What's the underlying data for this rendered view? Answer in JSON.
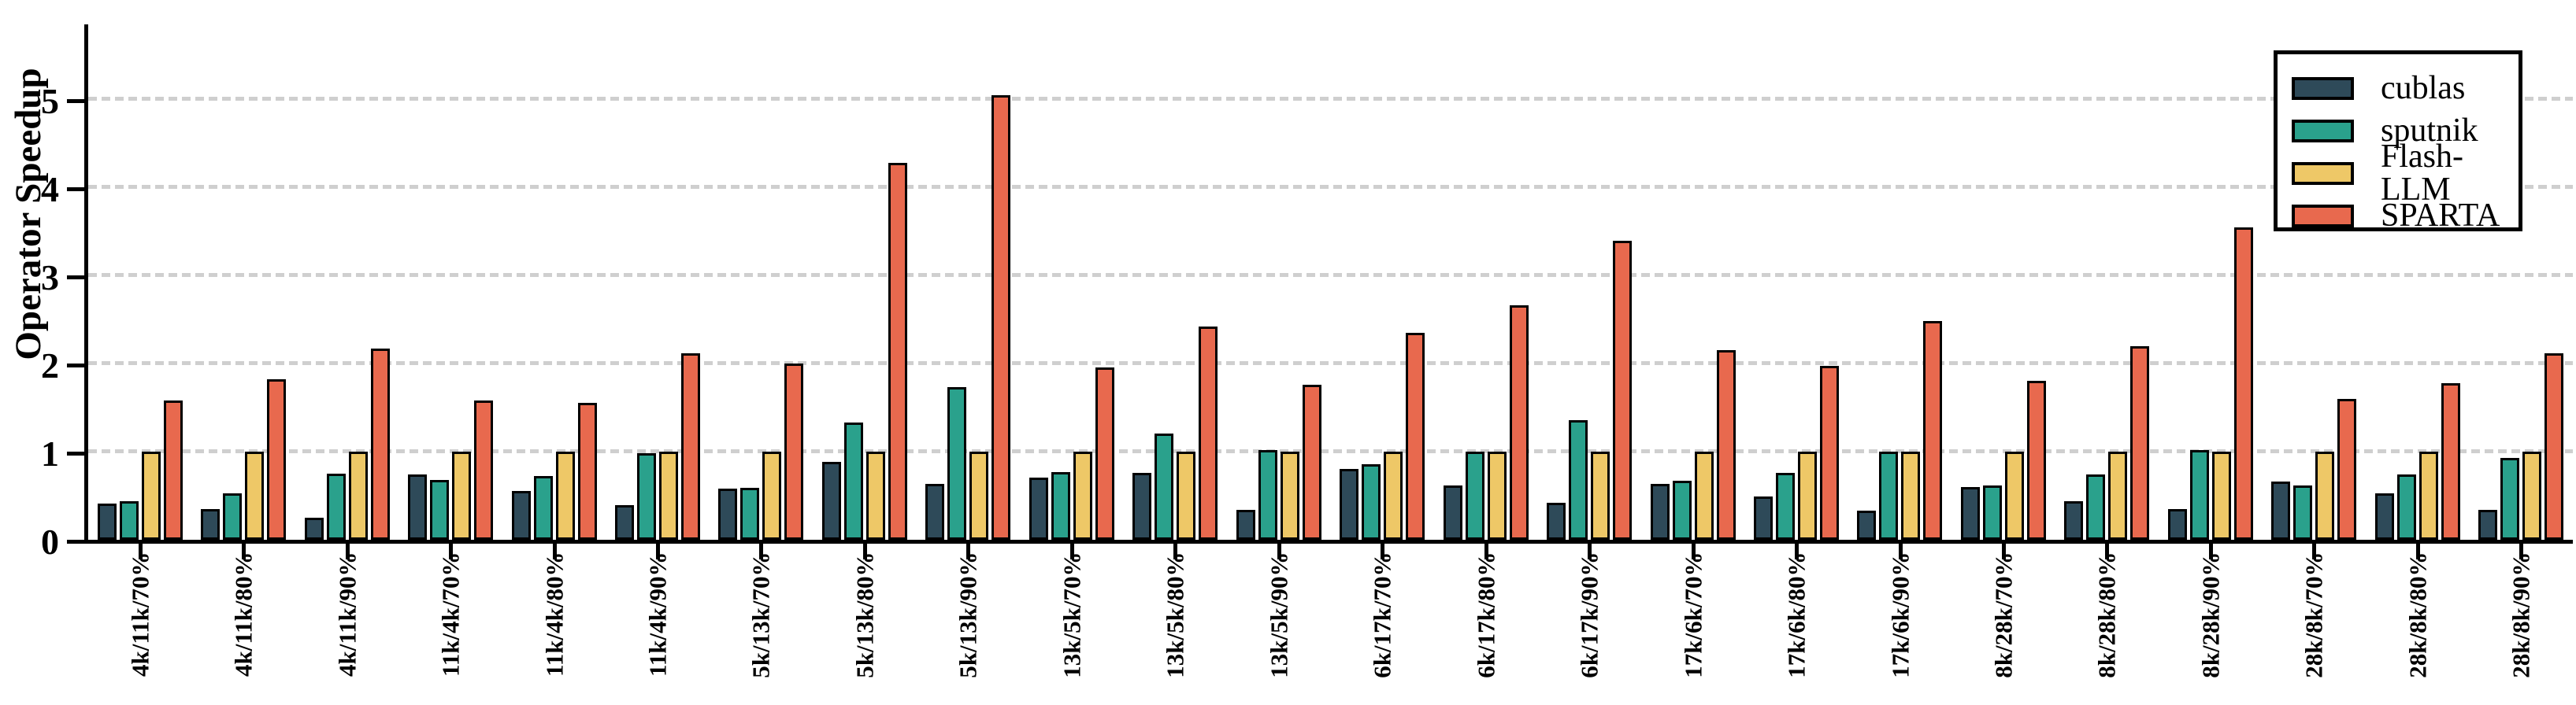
{
  "chart_data": {
    "type": "bar",
    "title": "",
    "xlabel": "",
    "ylabel": "Operator Speedup",
    "ylim": [
      0,
      5.85
    ],
    "yticks": [
      0,
      1,
      2,
      3,
      4,
      5
    ],
    "grid": "horizontal dashed gridlines at integer values",
    "legend_position": "upper right",
    "categories": [
      "4k/11k/70%",
      "4k/11k/80%",
      "4k/11k/90%",
      "11k/4k/70%",
      "11k/4k/80%",
      "11k/4k/90%",
      "5k/13k/70%",
      "5k/13k/80%",
      "5k/13k/90%",
      "13k/5k/70%",
      "13k/5k/80%",
      "13k/5k/90%",
      "6k/17k/70%",
      "6k/17k/80%",
      "6k/17k/90%",
      "17k/6k/70%",
      "17k/6k/80%",
      "17k/6k/90%",
      "8k/28k/70%",
      "8k/28k/80%",
      "8k/28k/90%",
      "28k/8k/70%",
      "28k/8k/80%",
      "28k/8k/90%"
    ],
    "series": [
      {
        "name": "cublas",
        "color": "#2e4a59",
        "values": [
          0.41,
          0.35,
          0.25,
          0.74,
          0.55,
          0.39,
          0.58,
          0.88,
          0.63,
          0.71,
          0.76,
          0.34,
          0.8,
          0.62,
          0.42,
          0.63,
          0.49,
          0.33,
          0.6,
          0.44,
          0.35,
          0.66,
          0.53,
          0.34
        ]
      },
      {
        "name": "sputnik",
        "color": "#2aa18c",
        "values": [
          0.44,
          0.53,
          0.75,
          0.68,
          0.72,
          0.98,
          0.59,
          1.33,
          1.73,
          0.77,
          1.21,
          1.02,
          0.86,
          1.0,
          1.36,
          0.67,
          0.76,
          1.0,
          0.62,
          0.74,
          1.02,
          0.62,
          0.74,
          0.93
        ]
      },
      {
        "name": "Flash-LLM",
        "color": "#eec867",
        "values": [
          1.0,
          1.0,
          1.0,
          1.0,
          1.0,
          1.0,
          1.0,
          1.0,
          1.0,
          1.0,
          1.0,
          1.0,
          1.0,
          1.0,
          1.0,
          1.0,
          1.0,
          1.0,
          1.0,
          1.0,
          1.0,
          1.0,
          1.0,
          1.0
        ]
      },
      {
        "name": "SPARTA",
        "color": "#e8694e",
        "values": [
          1.58,
          1.82,
          2.17,
          1.58,
          1.55,
          2.12,
          2.0,
          4.28,
          5.05,
          1.96,
          2.42,
          1.76,
          2.35,
          2.66,
          3.39,
          2.15,
          1.97,
          2.48,
          1.8,
          2.2,
          3.55,
          1.6,
          1.78,
          2.12
        ]
      }
    ]
  },
  "style_colors": {
    "axis": "#000000",
    "gridline": "#cfcfcf",
    "background": "#ffffff"
  }
}
